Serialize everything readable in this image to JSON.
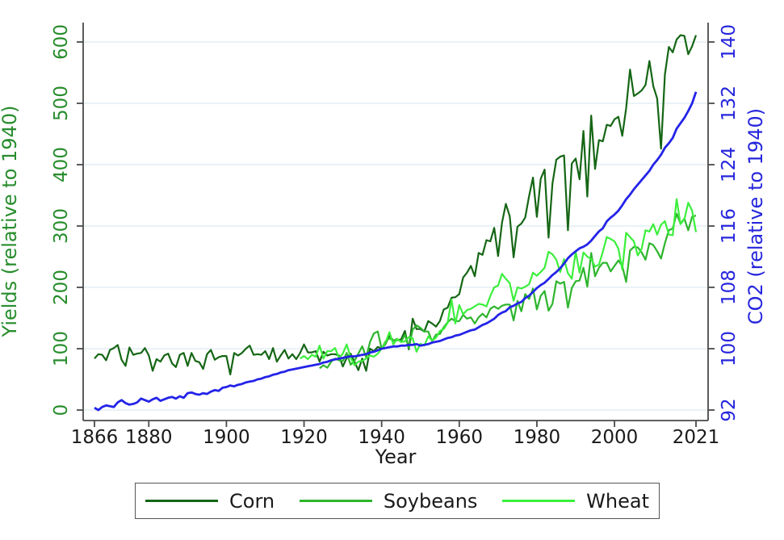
{
  "figure": {
    "xlabel": "Year",
    "left_ylabel": "Yields (relative to 1940)",
    "right_ylabel": "CO2 (relative to 1940)"
  },
  "colors": {
    "axis_line": "#4a4a4a",
    "gridline": "#e4edf4",
    "x_tick_text": "#1a1a1a",
    "left_tick_text": "#288d2d",
    "right_tick_text": "#2626dd",
    "legend_border": "#565656"
  },
  "chart_data": {
    "type": "line",
    "title": "",
    "xlabel": "Year",
    "grid": true,
    "legend_position": "bottom",
    "x_axis": {
      "ticks": [
        1866,
        1880,
        1900,
        1920,
        1940,
        1960,
        1980,
        2000,
        2021
      ],
      "range": [
        1866,
        2021
      ]
    },
    "left_axis": {
      "label": "Yields (relative to 1940)",
      "ticks": [
        0,
        100,
        200,
        300,
        400,
        500,
        600
      ],
      "range": [
        0,
        600
      ],
      "color": "#288d2d"
    },
    "right_axis": {
      "label": "CO2 (relative to 1940)",
      "ticks": [
        92,
        100,
        108,
        116,
        124,
        132,
        140
      ],
      "range": [
        92,
        140
      ],
      "color": "#2626dd"
    },
    "series": [
      {
        "name": "Corn",
        "axis": "left",
        "color": "#156615",
        "start_year": 1866,
        "values": [
          84,
          91,
          90,
          81,
          98,
          101,
          106,
          82,
          72,
          102,
          90,
          92,
          93,
          101,
          89,
          64,
          83,
          79,
          89,
          92,
          76,
          70,
          90,
          93,
          72,
          93,
          80,
          78,
          67,
          91,
          98,
          82,
          86,
          88,
          88,
          58,
          93,
          89,
          93,
          100,
          105,
          90,
          91,
          90,
          96,
          83,
          101,
          79,
          89,
          98,
          84,
          91,
          83,
          93,
          107,
          94,
          94,
          96,
          79,
          95,
          89,
          91,
          91,
          89,
          71,
          85,
          92,
          79,
          65,
          84,
          64,
          100,
          96,
          103,
          100,
          108,
          122,
          113,
          114,
          115,
          129,
          99,
          149,
          132,
          132,
          128,
          145,
          141,
          136,
          145,
          164,
          167,
          183,
          184,
          189,
          216,
          224,
          235,
          218,
          256,
          253,
          277,
          275,
          297,
          251,
          305,
          336,
          316,
          249,
          299,
          304,
          314,
          349,
          379,
          315,
          377,
          392,
          281,
          369,
          408,
          413,
          415,
          293,
          402,
          410,
          376,
          455,
          348,
          480,
          393,
          440,
          438,
          465,
          463,
          474,
          478,
          447,
          492,
          555,
          512,
          516,
          521,
          530,
          569,
          528,
          508,
          426,
          547,
          592,
          583,
          604,
          611,
          610,
          580,
          593,
          611
        ]
      },
      {
        "name": "Soybeans",
        "axis": "left",
        "color": "#2db52d",
        "start_year": 1924,
        "values": [
          68,
          73,
          69,
          79,
          84,
          81,
          80,
          93,
          74,
          80,
          92,
          104,
          86,
          111,
          125,
          128,
          100,
          112,
          117,
          113,
          116,
          111,
          123,
          101,
          131,
          138,
          134,
          128,
          128,
          112,
          123,
          124,
          135,
          143,
          149,
          145,
          145,
          155,
          149,
          151,
          141,
          151,
          157,
          151,
          165,
          169,
          165,
          170,
          172,
          172,
          146,
          178,
          161,
          189,
          181,
          198,
          164,
          186,
          194,
          162,
          173,
          210,
          206,
          209,
          167,
          199,
          210,
          211,
          232,
          201,
          256,
          218,
          232,
          240,
          240,
          226,
          235,
          244,
          235,
          209,
          260,
          266,
          265,
          257,
          245,
          272,
          269,
          259,
          247,
          272,
          293,
          296,
          320,
          304,
          312,
          293,
          315,
          317
        ]
      },
      {
        "name": "Wheat",
        "axis": "left",
        "color": "#3bef3b",
        "start_year": 1919,
        "values": [
          84,
          88,
          83,
          90,
          87,
          105,
          84,
          96,
          96,
          101,
          85,
          92,
          107,
          86,
          73,
          79,
          80,
          84,
          89,
          87,
          92,
          100,
          110,
          127,
          107,
          116,
          111,
          112,
          119,
          117,
          95,
          108,
          105,
          120,
          113,
          118,
          129,
          132,
          142,
          180,
          141,
          171,
          156,
          163,
          165,
          169,
          173,
          172,
          169,
          186,
          200,
          203,
          222,
          214,
          207,
          178,
          200,
          198,
          201,
          205,
          224,
          219,
          225,
          232,
          258,
          254,
          245,
          225,
          246,
          223,
          214,
          258,
          224,
          257,
          250,
          246,
          234,
          237,
          258,
          282,
          279,
          275,
          263,
          229,
          289,
          282,
          275,
          252,
          263,
          293,
          291,
          303,
          286,
          302,
          308,
          286,
          285,
          344,
          303,
          311,
          338,
          325,
          290
        ]
      },
      {
        "name": "CO2",
        "axis": "right",
        "color": "#2424e8",
        "start_year": 1866,
        "values": [
          92.3,
          92.0,
          92.4,
          92.6,
          92.5,
          92.4,
          93.0,
          93.3,
          92.9,
          92.7,
          92.8,
          93.0,
          93.5,
          93.3,
          93.1,
          93.4,
          93.6,
          93.2,
          93.4,
          93.6,
          93.7,
          93.5,
          93.8,
          93.6,
          94.2,
          94.3,
          94.1,
          94.0,
          94.2,
          94.1,
          94.4,
          94.6,
          94.5,
          94.9,
          95.0,
          95.2,
          95.1,
          95.3,
          95.4,
          95.6,
          95.7,
          95.8,
          96.0,
          96.1,
          96.3,
          96.4,
          96.6,
          96.7,
          96.9,
          97.0,
          97.2,
          97.3,
          97.4,
          97.5,
          97.6,
          97.7,
          97.8,
          97.9,
          98.0,
          98.2,
          98.3,
          98.5,
          98.6,
          98.7,
          98.8,
          98.9,
          99.0,
          99.0,
          99.1,
          99.2,
          99.3,
          99.5,
          99.6,
          99.8,
          100.0,
          100.1,
          100.2,
          100.3,
          100.3,
          100.4,
          100.4,
          100.5,
          100.5,
          100.6,
          100.4,
          100.5,
          100.6,
          100.8,
          100.9,
          101.0,
          101.2,
          101.4,
          101.5,
          101.7,
          101.8,
          102.0,
          102.2,
          102.4,
          102.5,
          102.8,
          103.1,
          103.3,
          103.6,
          103.9,
          104.4,
          104.7,
          104.9,
          105.4,
          105.6,
          105.9,
          106.1,
          106.6,
          106.9,
          107.4,
          107.9,
          108.3,
          108.6,
          109.1,
          109.6,
          110.0,
          110.5,
          111.1,
          111.8,
          112.3,
          112.7,
          113.1,
          113.3,
          113.6,
          114.1,
          114.7,
          115.3,
          115.7,
          116.6,
          117.1,
          117.5,
          118.0,
          118.7,
          119.5,
          120.1,
          120.8,
          121.4,
          122.0,
          122.6,
          123.2,
          124.0,
          124.6,
          125.3,
          126.2,
          126.8,
          127.5,
          128.7,
          129.4,
          130.1,
          131.0,
          132.0,
          133.5
        ]
      }
    ]
  }
}
